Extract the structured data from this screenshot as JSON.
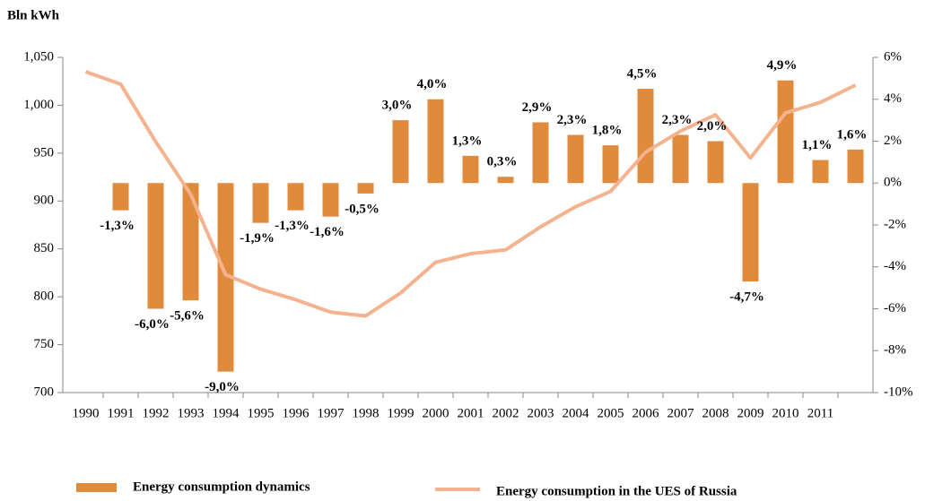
{
  "chart_data": {
    "type": "bar_line",
    "y_label": "Bln kWh",
    "categories": [
      "1990",
      "1991",
      "1992",
      "1993",
      "1994",
      "1995",
      "1996",
      "1997",
      "1998",
      "1999",
      "2000",
      "2001",
      "2002",
      "2003",
      "2004",
      "2005",
      "2006",
      "2007",
      "2008",
      "2009",
      "2010",
      "2011",
      null
    ],
    "series": [
      {
        "name": "Energy consumption dynamics",
        "color": "#e08a3c",
        "axis": "y2",
        "values": [
          null,
          -1.3,
          -6.0,
          -5.6,
          -9.0,
          -1.9,
          -1.3,
          -1.6,
          -0.5,
          3.0,
          4.0,
          1.3,
          0.3,
          2.9,
          2.3,
          1.8,
          4.5,
          2.3,
          2.0,
          -4.7,
          4.9,
          1.1,
          1.6
        ],
        "value_labels": [
          null,
          "-1,3%",
          "-6,0%",
          "-5,6%",
          "-9,0%",
          "-1,9%",
          "-1,3%",
          "-1,6%",
          "-0,5%",
          "3,0%",
          "4,0%",
          "1,3%",
          "0,3%",
          "2,9%",
          "2,3%",
          "1,8%",
          "4,5%",
          "2,3%",
          "2,0%",
          "-4,7%",
          "4,9%",
          "1,1%",
          "1,6%"
        ]
      },
      {
        "name": "Energy consumption in the UES of Russia",
        "color": "#f5b28f",
        "values": [
          1035,
          1022,
          962,
          907,
          823,
          808,
          797,
          784,
          780,
          804,
          836,
          845,
          849,
          873,
          894,
          910,
          951,
          973,
          990,
          945,
          992,
          1003,
          1021
        ]
      }
    ],
    "ylim": [
      700,
      1050
    ],
    "yticks": [
      700,
      750,
      800,
      850,
      900,
      950,
      {
        "value": 1000,
        "label": "1,000"
      },
      {
        "value": 1050,
        "label": "1,050"
      }
    ],
    "y2lim": [
      -10,
      6
    ],
    "y2ticks": [
      {
        "value": -10,
        "label": "-10%"
      },
      {
        "value": -8,
        "label": "-8%"
      },
      {
        "value": -6,
        "label": "-6%"
      },
      {
        "value": -4,
        "label": "-4%"
      },
      {
        "value": -2,
        "label": "-2%"
      },
      {
        "value": 0,
        "label": "0%"
      },
      {
        "value": 2,
        "label": "2%"
      },
      {
        "value": 4,
        "label": "4%"
      },
      {
        "value": 6,
        "label": "6%"
      }
    ]
  }
}
